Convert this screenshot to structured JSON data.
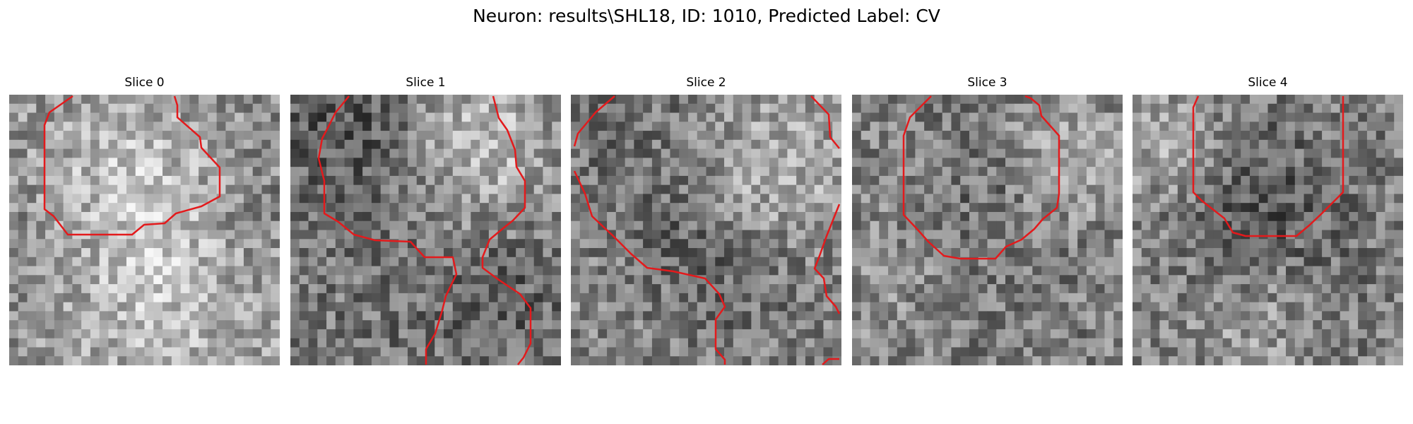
{
  "figure": {
    "suptitle": "Neuron: results\\SHL18, ID: 1010, Predicted Label: CV",
    "contour_color": "#e31a1c",
    "colormap": "gray"
  },
  "panels": [
    {
      "title": "Slice 0",
      "seed": 11,
      "tone_centers": [
        [
          0.42,
          0.36,
          0.35,
          0.22
        ],
        [
          0.58,
          0.78,
          0.45,
          0.18
        ],
        [
          0.18,
          0.55,
          0.28,
          -0.12
        ],
        [
          0.85,
          0.45,
          0.3,
          -0.08
        ]
      ],
      "base": 0.55,
      "contours": [
        [
          [
            90,
            2
          ],
          [
            57,
            25
          ],
          [
            50,
            43
          ],
          [
            50,
            162
          ],
          [
            63,
            172
          ],
          [
            83,
            198
          ],
          [
            174,
            198
          ],
          [
            191,
            184
          ],
          [
            220,
            182
          ],
          [
            236,
            168
          ],
          [
            272,
            158
          ],
          [
            298,
            144
          ],
          [
            298,
            103
          ],
          [
            272,
            75
          ],
          [
            270,
            60
          ],
          [
            238,
            32
          ],
          [
            238,
            15
          ],
          [
            234,
            2
          ]
        ]
      ]
    },
    {
      "title": "Slice 1",
      "seed": 23,
      "tone_centers": [
        [
          0.22,
          0.12,
          0.3,
          -0.18
        ],
        [
          0.7,
          0.18,
          0.28,
          0.25
        ],
        [
          0.35,
          0.75,
          0.35,
          -0.05
        ],
        [
          0.8,
          0.75,
          0.25,
          -0.12
        ]
      ],
      "base": 0.5,
      "contours": [
        [
          [
            83,
            2
          ],
          [
            64,
            25
          ],
          [
            55,
            43
          ],
          [
            45,
            62
          ],
          [
            40,
            90
          ],
          [
            48,
            122
          ],
          [
            48,
            168
          ],
          [
            68,
            180
          ],
          [
            90,
            198
          ],
          [
            120,
            206
          ],
          [
            170,
            208
          ],
          [
            190,
            230
          ],
          [
            230,
            230
          ],
          [
            235,
            254
          ],
          [
            220,
            285
          ],
          [
            215,
            305
          ],
          [
            205,
            338
          ],
          [
            192,
            360
          ],
          [
            192,
            382
          ]
        ],
        [
          [
            287,
            2
          ],
          [
            295,
            33
          ],
          [
            307,
            50
          ],
          [
            318,
            78
          ],
          [
            320,
            102
          ],
          [
            332,
            122
          ],
          [
            332,
            160
          ],
          [
            315,
            178
          ],
          [
            300,
            190
          ],
          [
            282,
            205
          ],
          [
            272,
            230
          ],
          [
            272,
            245
          ],
          [
            295,
            262
          ],
          [
            325,
            282
          ],
          [
            340,
            302
          ],
          [
            340,
            352
          ],
          [
            330,
            372
          ],
          [
            322,
            382
          ]
        ]
      ]
    },
    {
      "title": "Slice 2",
      "seed": 37,
      "tone_centers": [
        [
          0.72,
          0.3,
          0.3,
          0.25
        ],
        [
          0.3,
          0.25,
          0.35,
          -0.08
        ],
        [
          0.55,
          0.6,
          0.3,
          -0.15
        ],
        [
          0.2,
          0.8,
          0.3,
          0.05
        ]
      ],
      "base": 0.5,
      "contours": [
        [
          [
            62,
            2
          ],
          [
            35,
            25
          ],
          [
            10,
            55
          ],
          [
            5,
            73
          ]
        ],
        [
          [
            5,
            108
          ],
          [
            20,
            140
          ],
          [
            30,
            172
          ],
          [
            60,
            200
          ],
          [
            85,
            225
          ],
          [
            108,
            245
          ],
          [
            145,
            250
          ],
          [
            190,
            260
          ],
          [
            210,
            282
          ],
          [
            218,
            300
          ],
          [
            205,
            318
          ],
          [
            205,
            360
          ],
          [
            218,
            375
          ],
          [
            218,
            382
          ]
        ],
        [
          [
            340,
            2
          ],
          [
            365,
            28
          ],
          [
            367,
            60
          ],
          [
            380,
            76
          ]
        ],
        [
          [
            380,
            155
          ],
          [
            362,
            200
          ],
          [
            352,
            228
          ],
          [
            345,
            246
          ],
          [
            358,
            260
          ],
          [
            362,
            285
          ],
          [
            375,
            300
          ],
          [
            380,
            310
          ]
        ],
        [
          [
            356,
            382
          ],
          [
            365,
            374
          ],
          [
            380,
            374
          ]
        ]
      ]
    },
    {
      "title": "Slice 3",
      "seed": 49,
      "tone_centers": [
        [
          0.5,
          0.35,
          0.3,
          -0.1
        ],
        [
          0.78,
          0.25,
          0.22,
          0.18
        ],
        [
          0.25,
          0.65,
          0.3,
          0.05
        ],
        [
          0.6,
          0.8,
          0.35,
          -0.05
        ]
      ],
      "base": 0.52,
      "contours": [
        [
          [
            112,
            2
          ],
          [
            82,
            32
          ],
          [
            73,
            58
          ],
          [
            73,
            170
          ],
          [
            92,
            190
          ],
          [
            108,
            208
          ],
          [
            130,
            228
          ],
          [
            153,
            232
          ],
          [
            203,
            232
          ],
          [
            218,
            215
          ],
          [
            240,
            205
          ],
          [
            258,
            190
          ],
          [
            270,
            176
          ],
          [
            290,
            160
          ],
          [
            293,
            140
          ],
          [
            293,
            58
          ],
          [
            268,
            30
          ],
          [
            265,
            15
          ],
          [
            253,
            5
          ],
          [
            245,
            2
          ]
        ]
      ]
    },
    {
      "title": "Slice 4",
      "seed": 61,
      "tone_centers": [
        [
          0.4,
          0.35,
          0.3,
          -0.18
        ],
        [
          0.15,
          0.2,
          0.25,
          0.2
        ],
        [
          0.7,
          0.6,
          0.3,
          -0.05
        ],
        [
          0.45,
          0.85,
          0.25,
          0.12
        ]
      ],
      "base": 0.5,
      "contours": [
        [
          [
            93,
            2
          ],
          [
            86,
            18
          ],
          [
            86,
            138
          ],
          [
            98,
            150
          ],
          [
            130,
            175
          ],
          [
            142,
            195
          ],
          [
            160,
            200
          ],
          [
            232,
            200
          ],
          [
            250,
            185
          ],
          [
            268,
            168
          ],
          [
            290,
            146
          ],
          [
            298,
            138
          ],
          [
            298,
            2
          ]
        ]
      ]
    }
  ]
}
